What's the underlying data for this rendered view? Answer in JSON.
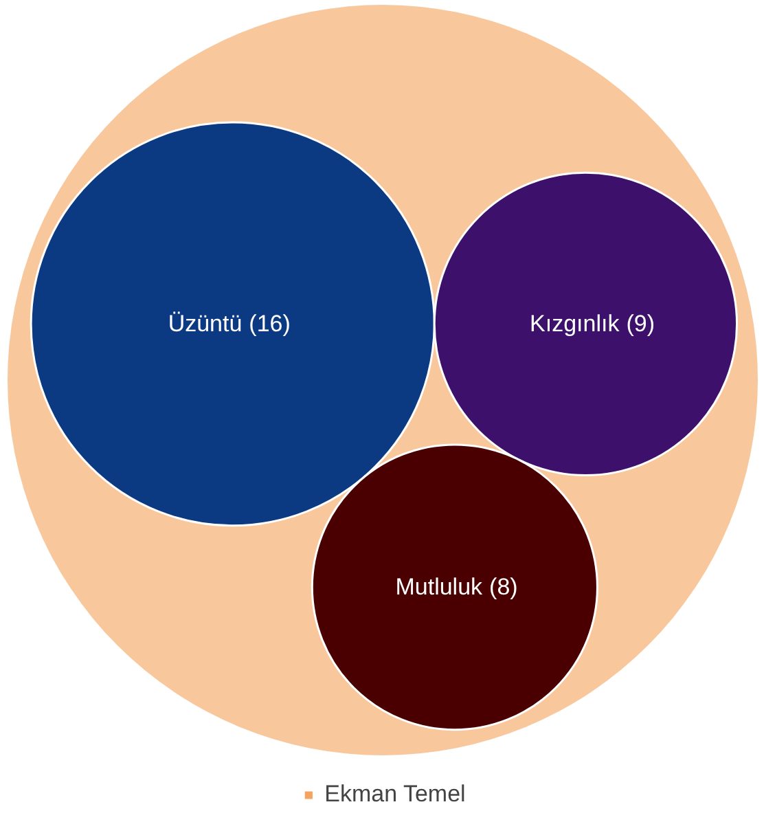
{
  "chart_data": {
    "type": "other",
    "categories": [
      "Üzüntü",
      "Kızgınlık",
      "Mutluluk"
    ],
    "series": [
      {
        "name": "Ekman Temel",
        "color": "#f4a460",
        "colors": [
          "#0b3a82",
          "#3d116b",
          "#4a0000"
        ],
        "values": [
          16,
          9,
          8
        ],
        "value_labels": [
          "(16)",
          "(9)",
          "(8)"
        ]
      }
    ],
    "legend": "bottom"
  }
}
